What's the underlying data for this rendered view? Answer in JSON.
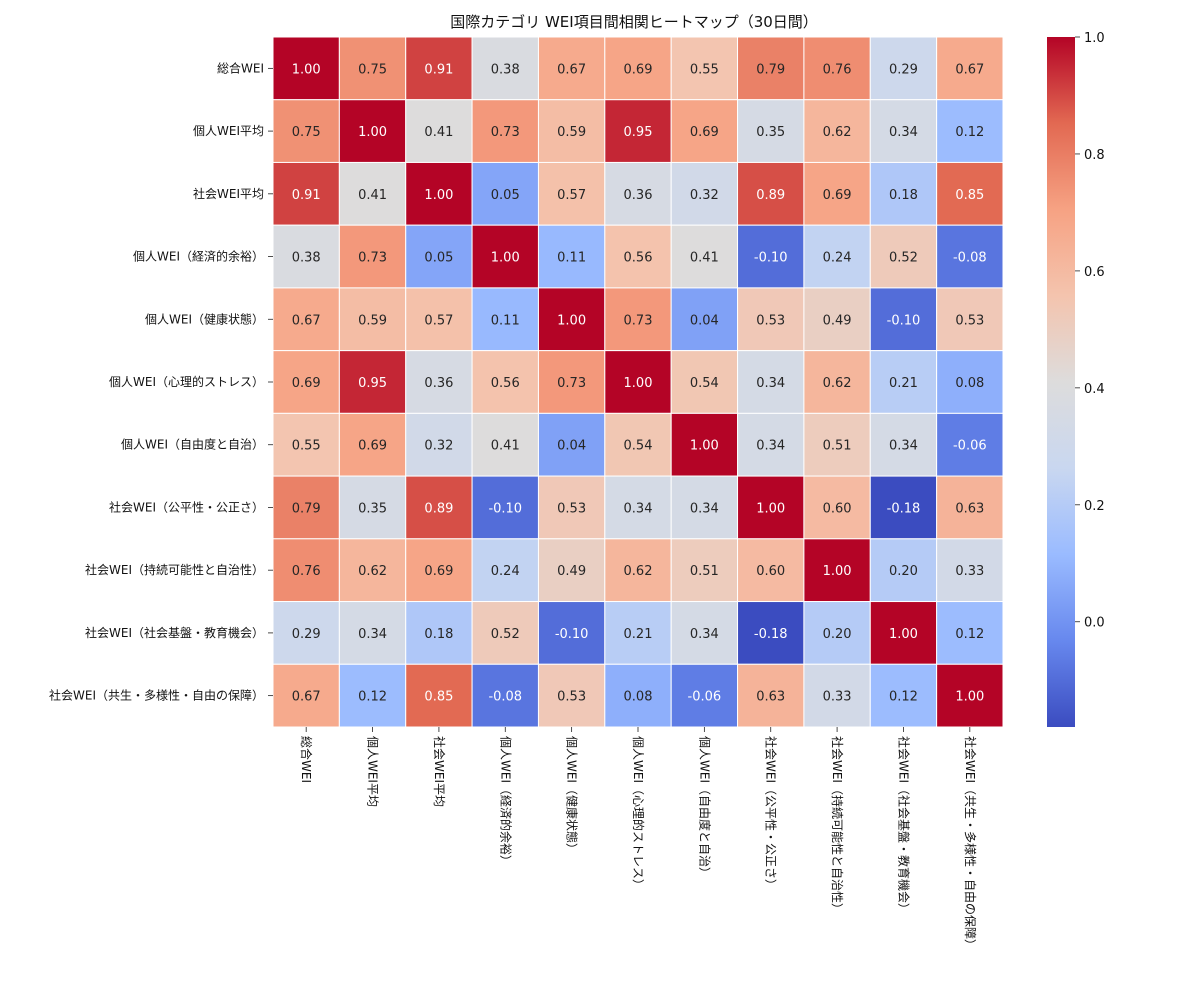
{
  "chart_data": {
    "type": "heatmap",
    "title": "国際カテゴリ WEI項目間相関ヒートマップ（30日間）",
    "row_labels": [
      "総合WEI",
      "個人WEI平均",
      "社会WEI平均",
      "個人WEI（経済的余裕）",
      "個人WEI（健康状態）",
      "個人WEI（心理的ストレス）",
      "個人WEI（自由度と自治）",
      "社会WEI（公平性・公正さ）",
      "社会WEI（持続可能性と自治性）",
      "社会WEI（社会基盤・教育機会）",
      "社会WEI（共生・多様性・自由の保障）"
    ],
    "col_labels": [
      "総合WEI",
      "個人WEI平均",
      "社会WEI平均",
      "個人WEI（経済的余裕）",
      "個人WEI（健康状態）",
      "個人WEI（心理的ストレス）",
      "個人WEI（自由度と自治）",
      "社会WEI（公平性・公正さ）",
      "社会WEI（持続可能性と自治性）",
      "社会WEI（社会基盤・教育機会）",
      "社会WEI（共生・多様性・自由の保障）"
    ],
    "values": [
      [
        1.0,
        0.75,
        0.91,
        0.38,
        0.67,
        0.69,
        0.55,
        0.79,
        0.76,
        0.29,
        0.67
      ],
      [
        0.75,
        1.0,
        0.41,
        0.73,
        0.59,
        0.95,
        0.69,
        0.35,
        0.62,
        0.34,
        0.12
      ],
      [
        0.91,
        0.41,
        1.0,
        0.05,
        0.57,
        0.36,
        0.32,
        0.89,
        0.69,
        0.18,
        0.85
      ],
      [
        0.38,
        0.73,
        0.05,
        1.0,
        0.11,
        0.56,
        0.41,
        -0.1,
        0.24,
        0.52,
        -0.08
      ],
      [
        0.67,
        0.59,
        0.57,
        0.11,
        1.0,
        0.73,
        0.04,
        0.53,
        0.49,
        -0.1,
        0.53
      ],
      [
        0.69,
        0.95,
        0.36,
        0.56,
        0.73,
        1.0,
        0.54,
        0.34,
        0.62,
        0.21,
        0.08
      ],
      [
        0.55,
        0.69,
        0.32,
        0.41,
        0.04,
        0.54,
        1.0,
        0.34,
        0.51,
        0.34,
        -0.06
      ],
      [
        0.79,
        0.35,
        0.89,
        -0.1,
        0.53,
        0.34,
        0.34,
        1.0,
        0.6,
        -0.18,
        0.63
      ],
      [
        0.76,
        0.62,
        0.69,
        0.24,
        0.49,
        0.62,
        0.51,
        0.6,
        1.0,
        0.2,
        0.33
      ],
      [
        0.29,
        0.34,
        0.18,
        0.52,
        -0.1,
        0.21,
        0.34,
        -0.18,
        0.2,
        1.0,
        0.12
      ],
      [
        0.67,
        0.12,
        0.85,
        -0.08,
        0.53,
        0.08,
        -0.06,
        0.63,
        0.33,
        0.12,
        1.0
      ]
    ],
    "value_format": "0.00",
    "colormap": "coolwarm",
    "color_range": [
      -0.18,
      1.0
    ],
    "colorbar_ticks": [
      "0.0",
      "0.2",
      "0.4",
      "0.6",
      "0.8",
      "1.0"
    ],
    "colorbar_tick_values": [
      0.0,
      0.2,
      0.4,
      0.6,
      0.8,
      1.0
    ],
    "cell_separator_color": "#ffffff",
    "colormap_stops": [
      "#3b4cc0",
      "#6788ee",
      "#9abbff",
      "#c9d7f0",
      "#dddcdc",
      "#f4c4ae",
      "#f6a283",
      "#e26952",
      "#b40426"
    ]
  }
}
